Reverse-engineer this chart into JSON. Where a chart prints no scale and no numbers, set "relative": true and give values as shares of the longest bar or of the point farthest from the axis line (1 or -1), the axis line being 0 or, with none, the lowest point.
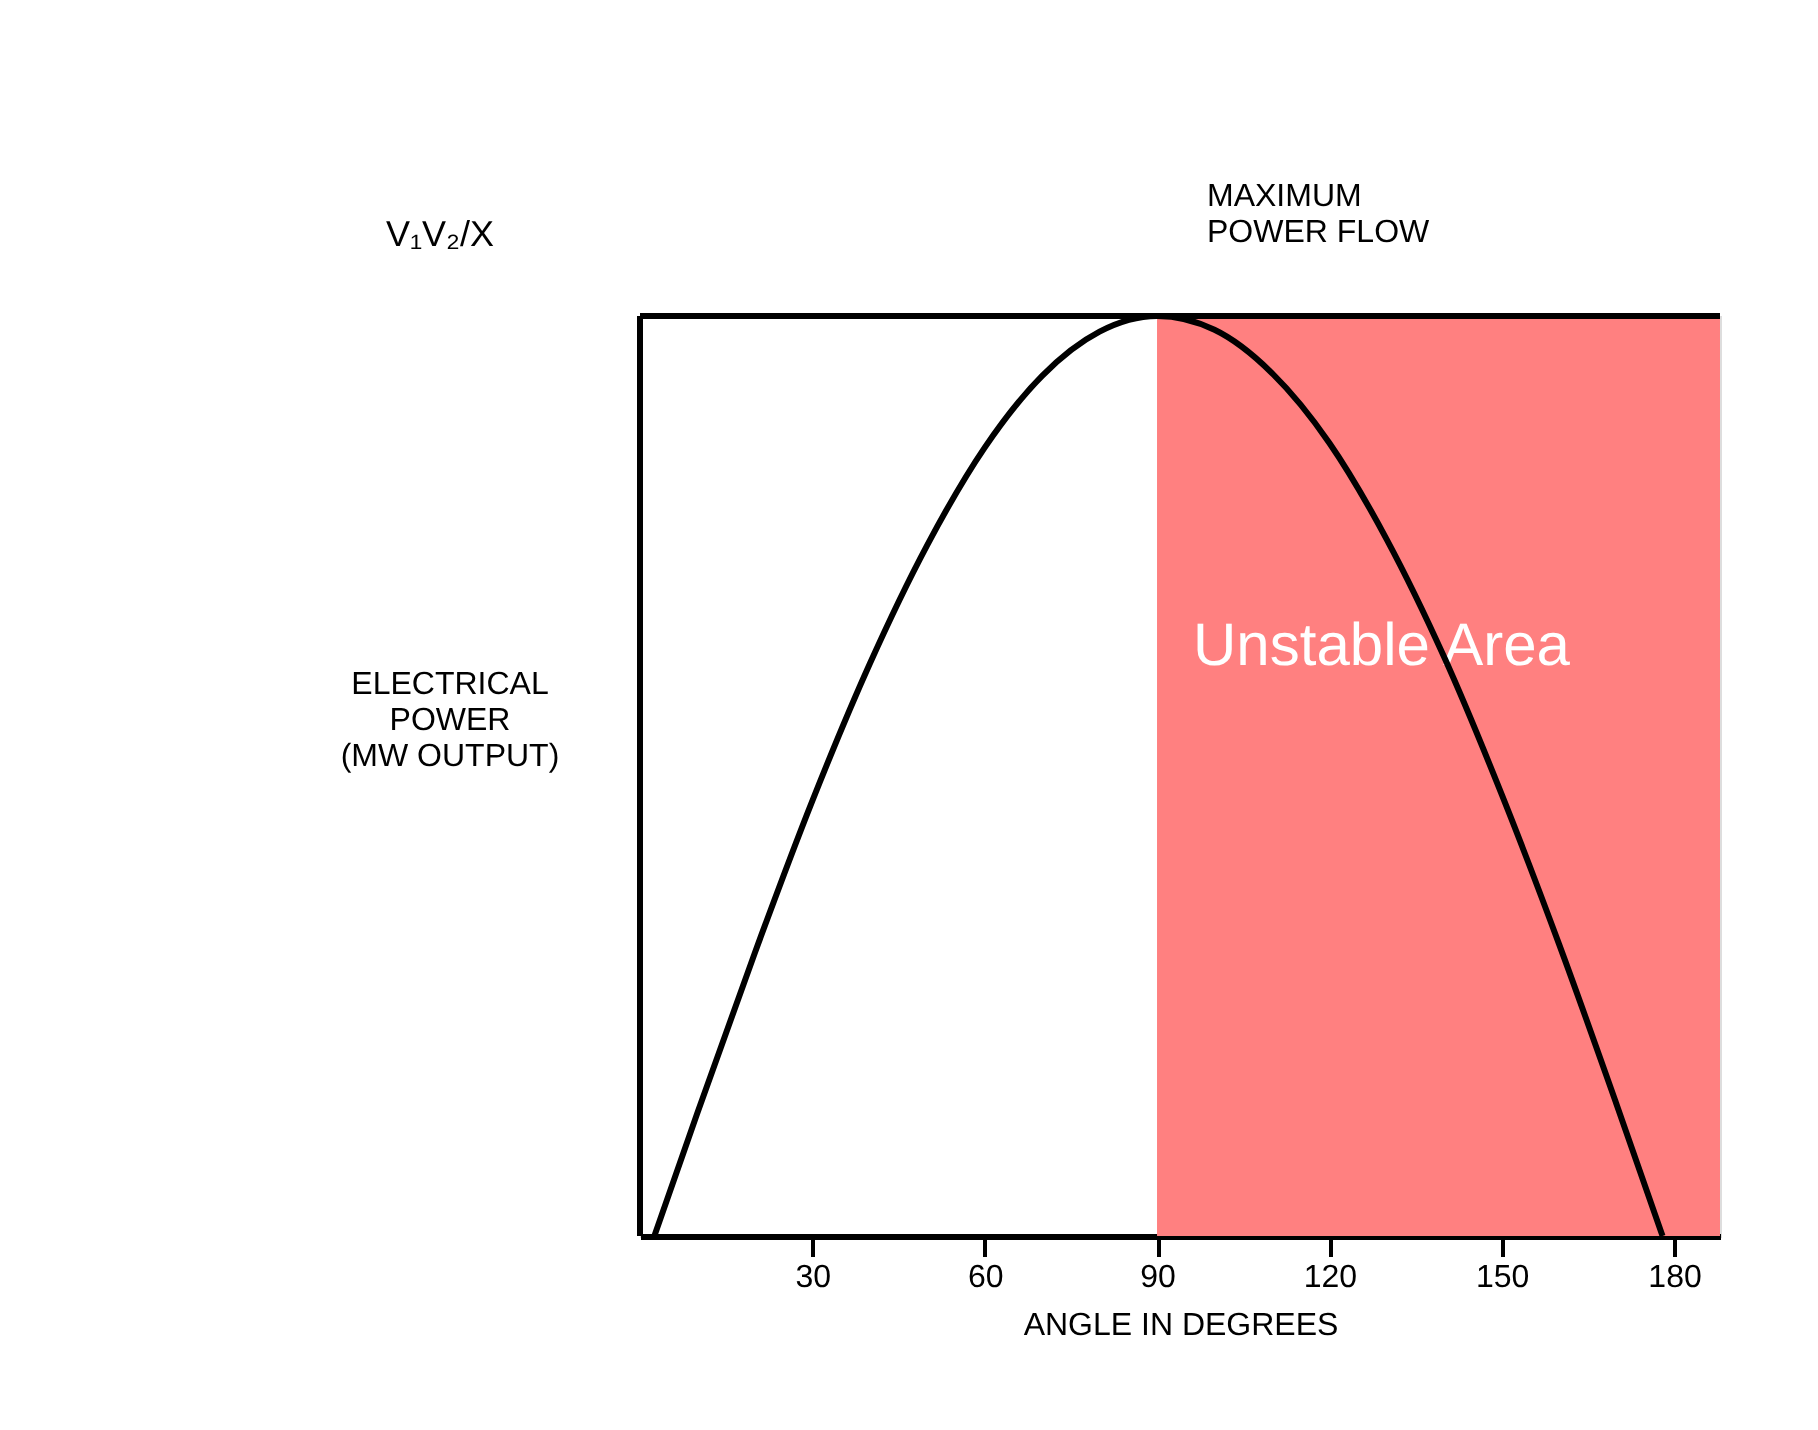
{
  "chart_data": {
    "type": "line",
    "xlabel": "ANGLE IN DEGREES",
    "ylabel": "ELECTRICAL\nPOWER\n(MW OUTPUT)",
    "x": [
      2.5,
      10,
      20,
      30,
      40,
      50,
      60,
      70,
      80,
      90,
      100,
      110,
      120,
      130,
      140,
      150,
      160,
      170,
      178
    ],
    "series": [
      {
        "color": "#000000",
        "values": [
          0,
          0.134,
          0.308,
          0.473,
          0.622,
          0.751,
          0.857,
          0.935,
          0.983,
          1.0,
          0.985,
          0.938,
          0.862,
          0.757,
          0.629,
          0.48,
          0.317,
          0.143,
          0
        ]
      }
    ],
    "relative": true,
    "xlim": [
      0,
      188
    ],
    "xticks": [
      30,
      60,
      90,
      120,
      150,
      180
    ],
    "tick_labels": "x",
    "grid": false,
    "ref_lines": [
      {
        "axis": "y",
        "value": 1,
        "label": "V₁V₂/X",
        "color": "#000000"
      }
    ],
    "bands": [
      {
        "axis": "x",
        "from": 90,
        "to": 188,
        "label": "Unstable Area",
        "color": "#ff8080"
      }
    ],
    "annotations": [
      {
        "text": "MAXIMUM\nPOWER FLOW",
        "x": 90,
        "y": 1
      }
    ]
  }
}
